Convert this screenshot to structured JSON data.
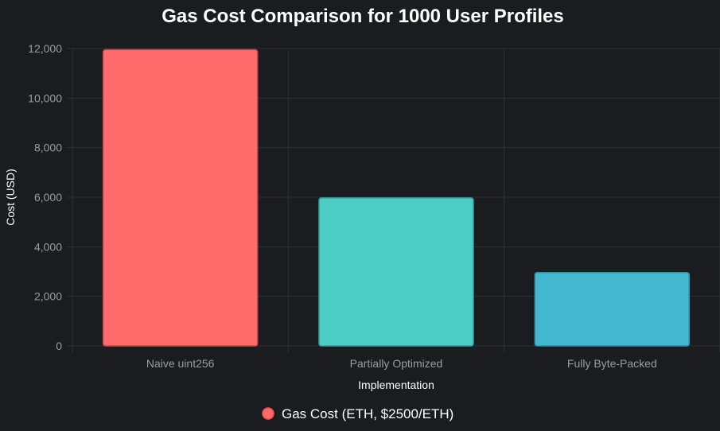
{
  "chart_data": {
    "type": "bar",
    "title": "Gas Cost Comparison for 1000 User Profiles",
    "xlabel": "Implementation",
    "ylabel": "Cost (USD)",
    "categories": [
      "Naive uint256",
      "Partially Optimized",
      "Fully Byte-Packed"
    ],
    "series": [
      {
        "name": "Gas Cost (ETH, $2500/ETH)",
        "values": [
          11950,
          5970,
          2960
        ],
        "colors": [
          "#ff6b6b",
          "#4ecdc4",
          "#45b7d1"
        ],
        "border_colors": [
          "#c94a4a",
          "#2fa39b",
          "#2f8fab"
        ]
      }
    ],
    "ylim": [
      0,
      12000
    ],
    "yticks": [
      "0",
      "2,000",
      "4,000",
      "6,000",
      "8,000",
      "10,000",
      "12,000"
    ],
    "ytick_values": [
      0,
      2000,
      4000,
      6000,
      8000,
      10000,
      12000
    ],
    "grid": true,
    "legend_position": "bottom",
    "legend_marker_color": "#ff6b6b",
    "legend_marker_border": "#ff4d4d",
    "background": "#1b1c20"
  }
}
